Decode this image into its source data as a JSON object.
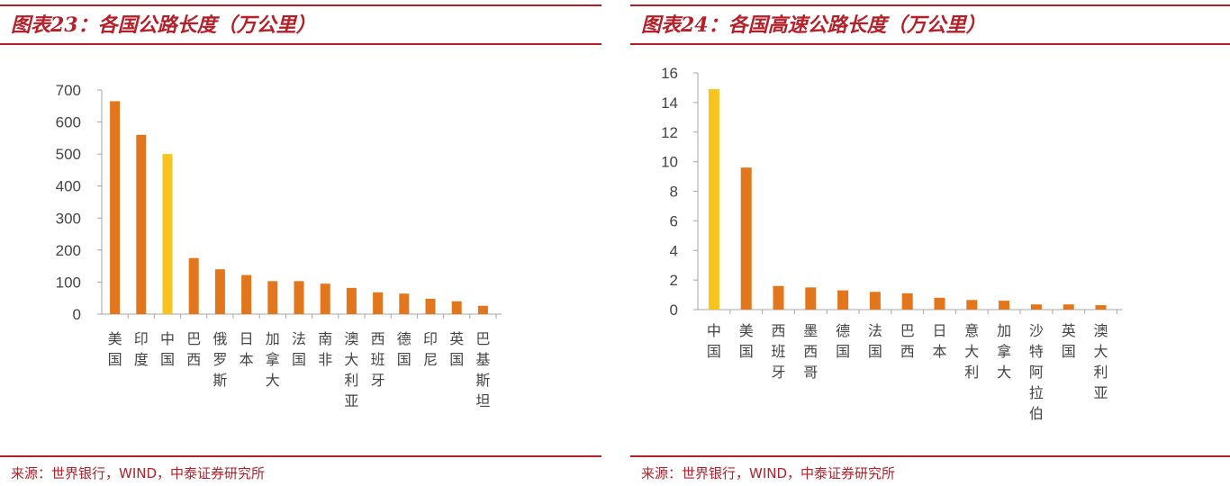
{
  "charts": [
    {
      "title": "图表23：各国公路长度（万公里）",
      "source": "来源：世界银行，WIND，中泰证券研究所",
      "chart_data": {
        "type": "bar",
        "categories": [
          "美国",
          "印度",
          "中国",
          "巴西",
          "俄罗斯",
          "日本",
          "加拿大",
          "法国",
          "南非",
          "澳大利亚",
          "西班牙",
          "德国",
          "印尼",
          "英国",
          "巴基斯坦"
        ],
        "values": [
          665,
          560,
          500,
          175,
          140,
          122,
          103,
          103,
          95,
          82,
          68,
          64,
          48,
          40,
          26
        ],
        "highlight_index": 2,
        "ylim": [
          0,
          700
        ],
        "yticks": [
          0,
          100,
          200,
          300,
          400,
          500,
          600,
          700
        ],
        "xlabel": "",
        "ylabel": "",
        "grid": false,
        "colors": {
          "bar": "#e1761c",
          "highlight": "#f7c31c",
          "axis": "#a6a6a6"
        }
      }
    },
    {
      "title": "图表24：各国高速公路长度（万公里）",
      "source": "来源：世界银行，WIND，中泰证券研究所",
      "chart_data": {
        "type": "bar",
        "categories": [
          "中国",
          "美国",
          "西班牙",
          "墨西哥",
          "德国",
          "法国",
          "巴西",
          "日本",
          "意大利",
          "加拿大",
          "沙特阿拉伯",
          "英国",
          "澳大利亚"
        ],
        "values": [
          14.9,
          9.6,
          1.6,
          1.5,
          1.3,
          1.2,
          1.1,
          0.8,
          0.65,
          0.6,
          0.35,
          0.35,
          0.3
        ],
        "highlight_index": 0,
        "ylim": [
          0,
          16
        ],
        "yticks": [
          0,
          2,
          4,
          6,
          8,
          10,
          12,
          14,
          16
        ],
        "xlabel": "",
        "ylabel": "",
        "grid": false,
        "colors": {
          "bar": "#e1761c",
          "highlight": "#f7c31c",
          "axis": "#a6a6a6"
        }
      }
    }
  ]
}
